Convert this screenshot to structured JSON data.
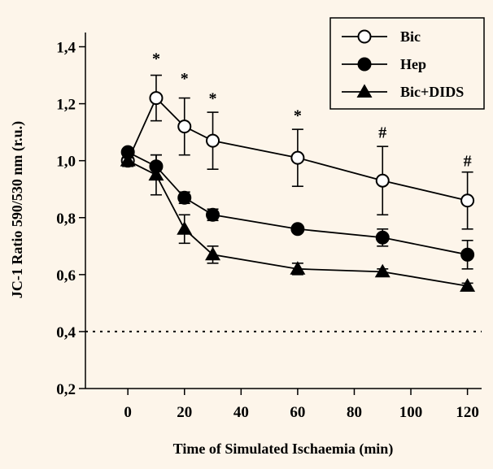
{
  "chart_data": {
    "type": "line",
    "xlabel": "Time of Simulated Ischaemia (min)",
    "ylabel": "JC-1 Ratio 590/530 nm (r.u.)",
    "xlim": [
      -15,
      125
    ],
    "ylim": [
      0.2,
      1.45
    ],
    "xticks": [
      "0",
      "20",
      "40",
      "60",
      "80",
      "100",
      "120"
    ],
    "yticks": [
      "0,2",
      "0,4",
      "0,6",
      "0,8",
      "1,0",
      "1,2",
      "1,4"
    ],
    "reference_line": 0.4,
    "legend_position": "top-right",
    "series": [
      {
        "name": "Bic",
        "marker": "open-circle",
        "x": [
          0,
          10,
          20,
          30,
          60,
          90,
          120
        ],
        "y": [
          1.0,
          1.22,
          1.12,
          1.07,
          1.01,
          0.93,
          0.86
        ],
        "err": [
          0.02,
          0.08,
          0.1,
          0.1,
          0.1,
          0.12,
          0.1
        ]
      },
      {
        "name": "Hep",
        "marker": "filled-circle",
        "x": [
          0,
          10,
          20,
          30,
          60,
          90,
          120
        ],
        "y": [
          1.03,
          0.98,
          0.87,
          0.81,
          0.76,
          0.73,
          0.67
        ],
        "err": [
          0.01,
          0.04,
          0.02,
          0.02,
          0.01,
          0.03,
          0.05
        ]
      },
      {
        "name": "Bic+DIDS",
        "marker": "filled-triangle",
        "x": [
          0,
          10,
          20,
          30,
          60,
          90,
          120
        ],
        "y": [
          1.0,
          0.95,
          0.76,
          0.67,
          0.62,
          0.61,
          0.56
        ],
        "err": [
          0.01,
          0.07,
          0.05,
          0.03,
          0.02,
          0.01,
          0.01
        ]
      }
    ],
    "annotations": [
      {
        "text": "*",
        "x": 10,
        "y": 1.36
      },
      {
        "text": "*",
        "x": 20,
        "y": 1.29
      },
      {
        "text": "*",
        "x": 30,
        "y": 1.22
      },
      {
        "text": "*",
        "x": 60,
        "y": 1.16
      },
      {
        "text": "#",
        "x": 90,
        "y": 1.1
      },
      {
        "text": "#",
        "x": 120,
        "y": 1.0
      }
    ]
  }
}
